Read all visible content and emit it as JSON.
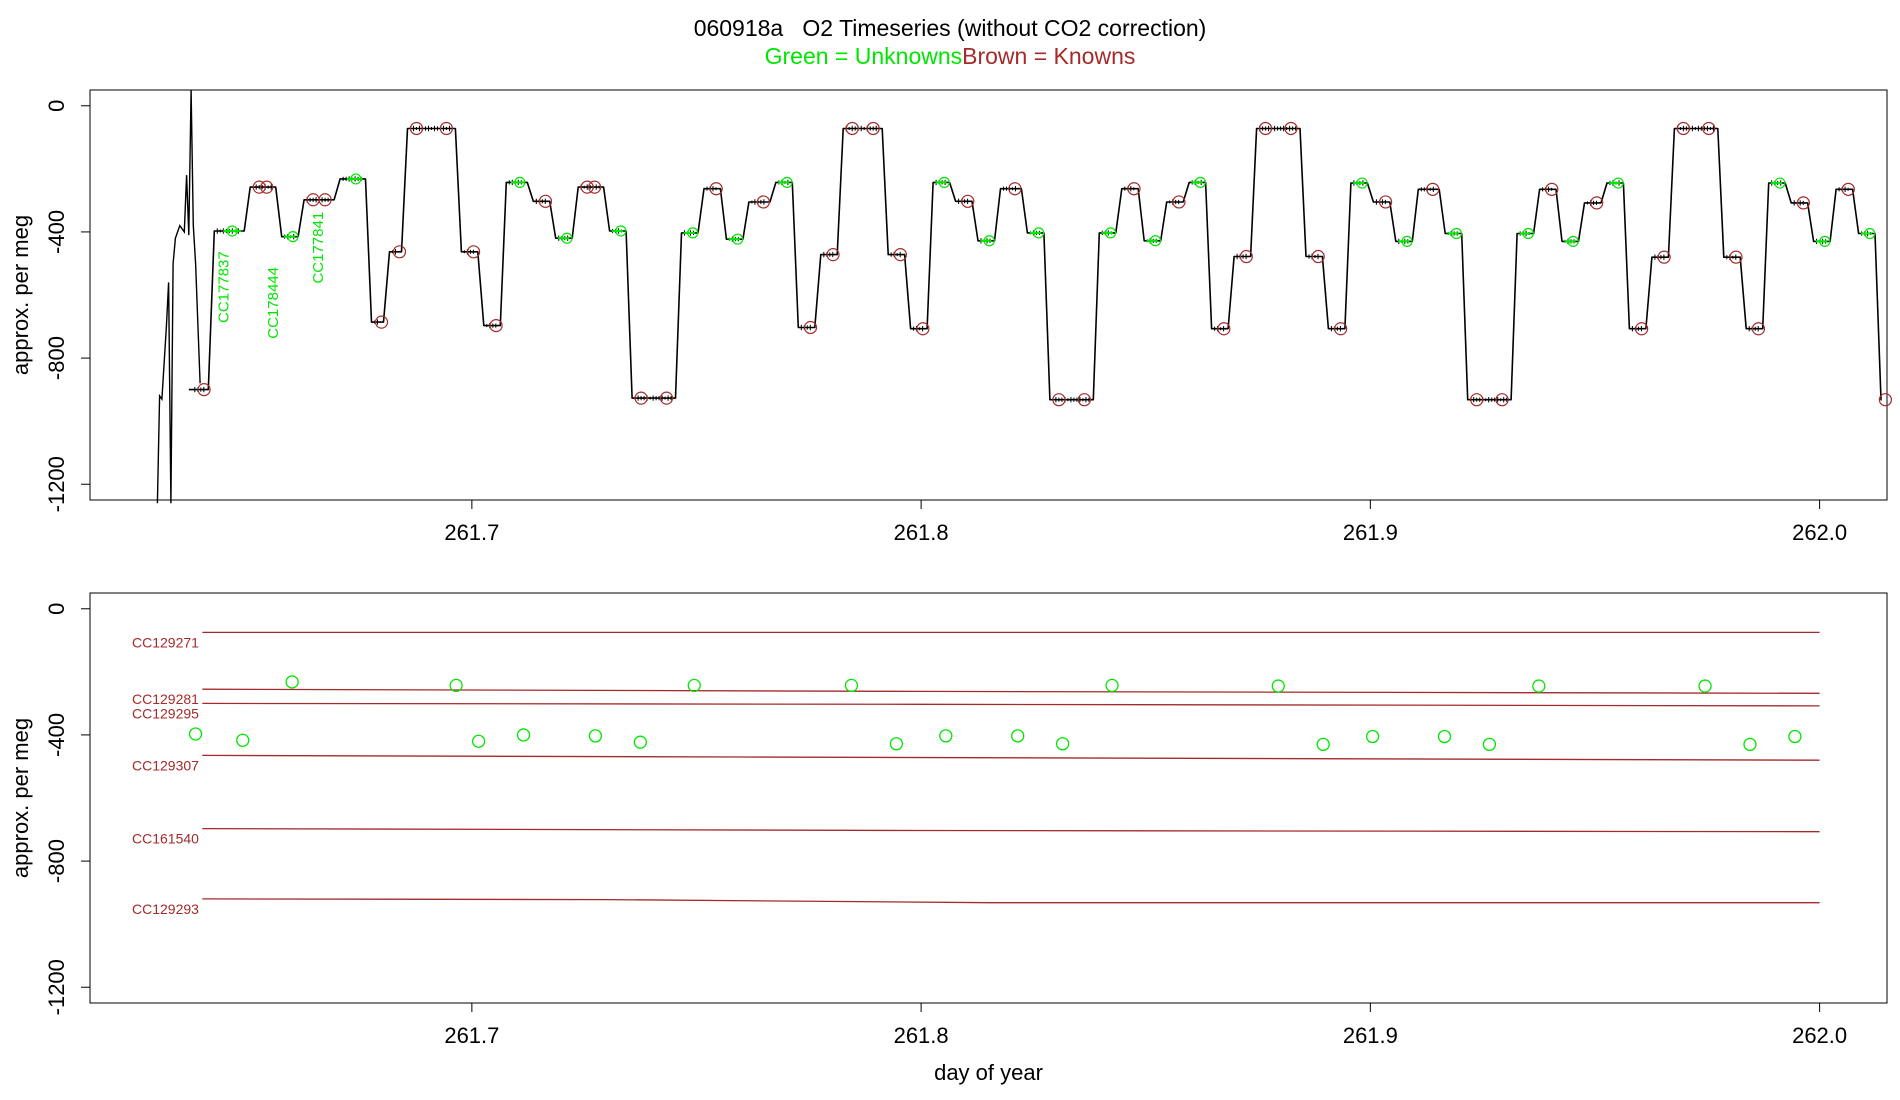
{
  "title": {
    "run_id": "060918a",
    "main": "O2 Timeseries (without CO2 correction)",
    "legend_green": "Green = Unknowns",
    "legend_brown": "Brown = Knowns"
  },
  "colors": {
    "unknowns": "#00e600",
    "knowns": "#a52a2a",
    "trace": "#000000"
  },
  "chart_data": [
    {
      "type": "line",
      "ylabel": "approx. per meg",
      "xlabel": "",
      "xlim": [
        261.615,
        262.015
      ],
      "ylim": [
        -1250,
        50
      ],
      "xticks": [
        261.7,
        261.8,
        261.9,
        262.0
      ],
      "yticks": [
        0,
        -400,
        -800,
        -1200
      ],
      "xtick_labels": [
        "261.7",
        "261.8",
        "261.9",
        "262.0"
      ],
      "ytick_labels": [
        "0",
        "-400",
        "-800",
        "-1200"
      ],
      "startup": [
        [
          261.63,
          -1260
        ],
        [
          261.6305,
          -920
        ],
        [
          261.631,
          -930
        ],
        [
          261.632,
          -700
        ],
        [
          261.6325,
          -560
        ],
        [
          261.633,
          -1260
        ],
        [
          261.6335,
          -500
        ],
        [
          261.634,
          -420
        ],
        [
          261.635,
          -380
        ],
        [
          261.636,
          -400
        ],
        [
          261.6365,
          -220
        ],
        [
          261.637,
          -410
        ],
        [
          261.6375,
          50
        ],
        [
          261.638,
          -380
        ],
        [
          261.6385,
          -500
        ],
        [
          261.6395,
          -880
        ]
      ],
      "segments": [
        {
          "x0": 261.637,
          "x1": 261.642,
          "y": -900,
          "kind": "known"
        },
        {
          "x0": 261.642,
          "x1": 261.65,
          "y": -397,
          "kind": "unknown"
        },
        {
          "x0": 261.65,
          "x1": 261.657,
          "y": -258,
          "kind": "known"
        },
        {
          "x0": 261.657,
          "x1": 261.662,
          "y": -415,
          "kind": "unknown"
        },
        {
          "x0": 261.662,
          "x1": 261.67,
          "y": -298,
          "kind": "known"
        },
        {
          "x0": 261.67,
          "x1": 261.677,
          "y": -232,
          "kind": "unknown"
        },
        {
          "x0": 261.677,
          "x1": 261.681,
          "y": -686,
          "kind": "known"
        },
        {
          "x0": 261.681,
          "x1": 261.685,
          "y": -463,
          "kind": "known"
        },
        {
          "x0": 261.685,
          "x1": 261.697,
          "y": -72,
          "kind": "known"
        },
        {
          "x0": 261.697,
          "x1": 261.702,
          "y": -463,
          "kind": "known"
        },
        {
          "x0": 261.702,
          "x1": 261.707,
          "y": -697,
          "kind": "known"
        },
        {
          "x0": 261.707,
          "x1": 261.713,
          "y": -243,
          "kind": "unknown"
        },
        {
          "x0": 261.713,
          "x1": 261.718,
          "y": -303,
          "kind": "known"
        },
        {
          "x0": 261.718,
          "x1": 261.723,
          "y": -420,
          "kind": "unknown"
        },
        {
          "x0": 261.723,
          "x1": 261.73,
          "y": -258,
          "kind": "known"
        },
        {
          "x0": 261.73,
          "x1": 261.735,
          "y": -397,
          "kind": "unknown"
        },
        {
          "x0": 261.735,
          "x1": 261.746,
          "y": -927,
          "kind": "known"
        },
        {
          "x0": 261.746,
          "x1": 261.751,
          "y": -403,
          "kind": "unknown"
        },
        {
          "x0": 261.751,
          "x1": 261.756,
          "y": -263,
          "kind": "known"
        },
        {
          "x0": 261.756,
          "x1": 261.761,
          "y": -423,
          "kind": "unknown"
        },
        {
          "x0": 261.761,
          "x1": 261.767,
          "y": -305,
          "kind": "known"
        },
        {
          "x0": 261.767,
          "x1": 261.772,
          "y": -243,
          "kind": "unknown"
        },
        {
          "x0": 261.772,
          "x1": 261.777,
          "y": -703,
          "kind": "known"
        },
        {
          "x0": 261.777,
          "x1": 261.782,
          "y": -472,
          "kind": "known"
        },
        {
          "x0": 261.782,
          "x1": 261.792,
          "y": -72,
          "kind": "known"
        },
        {
          "x0": 261.792,
          "x1": 261.797,
          "y": -472,
          "kind": "known"
        },
        {
          "x0": 261.797,
          "x1": 261.802,
          "y": -707,
          "kind": "known"
        },
        {
          "x0": 261.802,
          "x1": 261.807,
          "y": -243,
          "kind": "unknown"
        },
        {
          "x0": 261.807,
          "x1": 261.812,
          "y": -303,
          "kind": "known"
        },
        {
          "x0": 261.812,
          "x1": 261.817,
          "y": -428,
          "kind": "unknown"
        },
        {
          "x0": 261.817,
          "x1": 261.823,
          "y": -263,
          "kind": "known"
        },
        {
          "x0": 261.823,
          "x1": 261.828,
          "y": -403,
          "kind": "unknown"
        },
        {
          "x0": 261.828,
          "x1": 261.839,
          "y": -932,
          "kind": "known"
        },
        {
          "x0": 261.839,
          "x1": 261.844,
          "y": -403,
          "kind": "unknown"
        },
        {
          "x0": 261.844,
          "x1": 261.849,
          "y": -263,
          "kind": "known"
        },
        {
          "x0": 261.849,
          "x1": 261.854,
          "y": -428,
          "kind": "unknown"
        },
        {
          "x0": 261.854,
          "x1": 261.859,
          "y": -305,
          "kind": "known"
        },
        {
          "x0": 261.859,
          "x1": 261.864,
          "y": -243,
          "kind": "unknown"
        },
        {
          "x0": 261.864,
          "x1": 261.869,
          "y": -707,
          "kind": "known"
        },
        {
          "x0": 261.869,
          "x1": 261.874,
          "y": -478,
          "kind": "known"
        },
        {
          "x0": 261.874,
          "x1": 261.885,
          "y": -72,
          "kind": "known"
        },
        {
          "x0": 261.885,
          "x1": 261.89,
          "y": -478,
          "kind": "known"
        },
        {
          "x0": 261.89,
          "x1": 261.895,
          "y": -707,
          "kind": "known"
        },
        {
          "x0": 261.895,
          "x1": 261.9,
          "y": -245,
          "kind": "unknown"
        },
        {
          "x0": 261.9,
          "x1": 261.905,
          "y": -305,
          "kind": "known"
        },
        {
          "x0": 261.905,
          "x1": 261.91,
          "y": -430,
          "kind": "unknown"
        },
        {
          "x0": 261.91,
          "x1": 261.916,
          "y": -265,
          "kind": "known"
        },
        {
          "x0": 261.916,
          "x1": 261.921,
          "y": -405,
          "kind": "unknown"
        },
        {
          "x0": 261.921,
          "x1": 261.932,
          "y": -932,
          "kind": "known"
        },
        {
          "x0": 261.932,
          "x1": 261.937,
          "y": -405,
          "kind": "unknown"
        },
        {
          "x0": 261.937,
          "x1": 261.942,
          "y": -265,
          "kind": "known"
        },
        {
          "x0": 261.942,
          "x1": 261.947,
          "y": -430,
          "kind": "unknown"
        },
        {
          "x0": 261.947,
          "x1": 261.952,
          "y": -308,
          "kind": "known"
        },
        {
          "x0": 261.952,
          "x1": 261.957,
          "y": -245,
          "kind": "unknown"
        },
        {
          "x0": 261.957,
          "x1": 261.962,
          "y": -707,
          "kind": "known"
        },
        {
          "x0": 261.962,
          "x1": 261.967,
          "y": -480,
          "kind": "known"
        },
        {
          "x0": 261.967,
          "x1": 261.978,
          "y": -72,
          "kind": "known"
        },
        {
          "x0": 261.978,
          "x1": 261.983,
          "y": -480,
          "kind": "known"
        },
        {
          "x0": 261.983,
          "x1": 261.988,
          "y": -707,
          "kind": "known"
        },
        {
          "x0": 261.988,
          "x1": 261.993,
          "y": -245,
          "kind": "unknown"
        },
        {
          "x0": 261.993,
          "x1": 261.998,
          "y": -308,
          "kind": "known"
        },
        {
          "x0": 261.998,
          "x1": 262.003,
          "y": -430,
          "kind": "unknown"
        },
        {
          "x0": 262.003,
          "x1": 262.008,
          "y": -265,
          "kind": "known"
        },
        {
          "x0": 262.008,
          "x1": 262.013,
          "y": -405,
          "kind": "unknown"
        },
        {
          "x0": 262.013,
          "x1": 262.0145,
          "y": -932,
          "kind": "known"
        }
      ],
      "labels": [
        {
          "text": "CC177837",
          "x": 261.645,
          "y": -575
        },
        {
          "text": "CC178444",
          "x": 261.656,
          "y": -625
        },
        {
          "text": "CC177841",
          "x": 261.666,
          "y": -450
        }
      ]
    },
    {
      "type": "scatter",
      "ylabel": "approx. per meg",
      "xlabel": "day of year",
      "xlim": [
        261.615,
        262.015
      ],
      "ylim": [
        -1250,
        50
      ],
      "xticks": [
        261.7,
        261.8,
        261.9,
        262.0
      ],
      "yticks": [
        0,
        -400,
        -800,
        -1200
      ],
      "xtick_labels": [
        "261.7",
        "261.8",
        "261.9",
        "262.0"
      ],
      "ytick_labels": [
        "0",
        "-400",
        "-800",
        "-1200"
      ],
      "knowns": [
        {
          "name": "CC129271",
          "x": [
            261.64,
            261.8,
            262.0
          ],
          "y": [
            -75,
            -75,
            -75
          ]
        },
        {
          "name": "CC129281",
          "x": [
            261.64,
            261.8,
            262.0
          ],
          "y": [
            -255,
            -262,
            -268
          ]
        },
        {
          "name": "CC129295",
          "x": [
            261.64,
            261.8,
            262.0
          ],
          "y": [
            -300,
            -303,
            -308
          ]
        },
        {
          "name": "CC129307",
          "x": [
            261.64,
            261.76,
            262.0
          ],
          "y": [
            -465,
            -470,
            -480
          ]
        },
        {
          "name": "CC161540",
          "x": [
            261.64,
            261.8,
            262.0
          ],
          "y": [
            -697,
            -703,
            -707
          ]
        },
        {
          "name": "CC129293",
          "x": [
            261.64,
            261.73,
            261.815,
            262.0
          ],
          "y": [
            -920,
            -922,
            -932,
            -932
          ]
        }
      ],
      "unknowns": {
        "x": [
          261.6385,
          261.649,
          261.66,
          261.6965,
          261.7015,
          261.7115,
          261.7275,
          261.7375,
          261.7495,
          261.7845,
          261.7945,
          261.8055,
          261.8215,
          261.8315,
          261.8425,
          261.8795,
          261.8895,
          261.9005,
          261.9165,
          261.9265,
          261.9375,
          261.9745,
          261.9845,
          261.9945
        ],
        "y": [
          -397,
          -417,
          -232,
          -243,
          -420,
          -400,
          -403,
          -423,
          -243,
          -243,
          -428,
          -403,
          -403,
          -428,
          -243,
          -245,
          -430,
          -405,
          -405,
          -430,
          -245,
          -245,
          -430,
          -405
        ]
      }
    }
  ]
}
